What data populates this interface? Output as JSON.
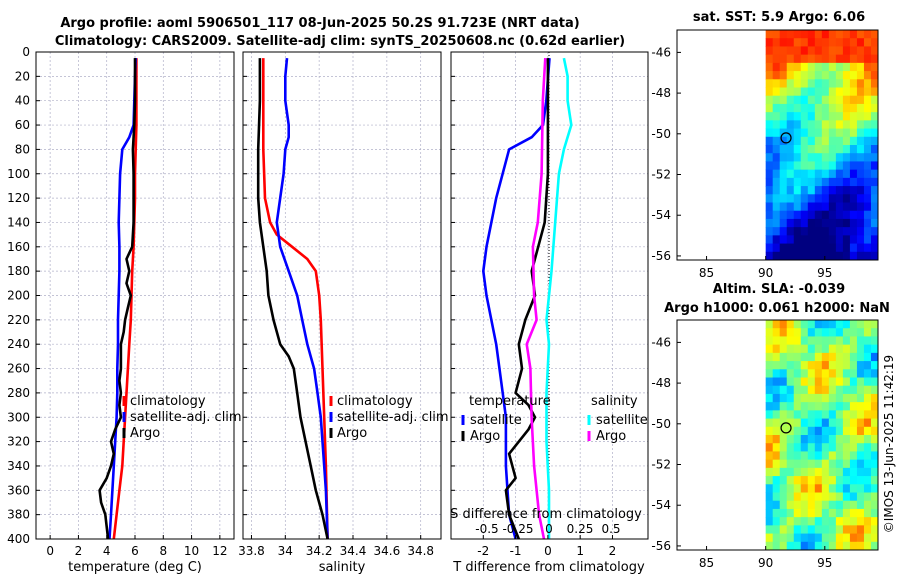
{
  "header": {
    "title_line1": "Argo profile: aoml 5906501_117 08-Jun-2025 50.2S 91.723E (NRT data)",
    "title_line2": "Climatology: CARS2009. Satellite-adj clim: synTS_20250608.nc (0.62d earlier)"
  },
  "copyright": "©IMOS 13-Jun-2025 11:42:19",
  "colors": {
    "climatology": "#ff0000",
    "satellite": "#0000ff",
    "argo": "#000000",
    "salinity_satellite": "#00ffff",
    "salinity_argo": "#ff00ff",
    "grid": "#b0b0c8",
    "map_marker": "#000000"
  },
  "chart_data": [
    {
      "type": "line",
      "id": "temperature",
      "xlabel": "temperature (deg C)",
      "ylabel": "",
      "xlim": [
        -1,
        13
      ],
      "ylim": [
        400,
        0
      ],
      "xticks": [
        0,
        2,
        4,
        6,
        8,
        10,
        12
      ],
      "yticks": [
        0,
        20,
        40,
        60,
        80,
        100,
        120,
        140,
        160,
        180,
        200,
        220,
        240,
        260,
        280,
        300,
        320,
        340,
        360,
        380,
        400
      ],
      "grid": true,
      "legend": {
        "placement": "right-middle",
        "entries": [
          "climatology",
          "satellite-adj. clim",
          "Argo"
        ]
      },
      "series": [
        {
          "name": "climatology",
          "color_key": "climatology",
          "points": [
            [
              6.1,
              5
            ],
            [
              6.1,
              20
            ],
            [
              6.1,
              40
            ],
            [
              6.1,
              60
            ],
            [
              6.05,
              80
            ],
            [
              6.0,
              100
            ],
            [
              6.0,
              120
            ],
            [
              5.95,
              140
            ],
            [
              5.9,
              160
            ],
            [
              5.8,
              180
            ],
            [
              5.75,
              200
            ],
            [
              5.7,
              220
            ],
            [
              5.6,
              240
            ],
            [
              5.5,
              260
            ],
            [
              5.4,
              280
            ],
            [
              5.3,
              300
            ],
            [
              5.2,
              320
            ],
            [
              5.1,
              340
            ],
            [
              4.9,
              360
            ],
            [
              4.7,
              380
            ],
            [
              4.5,
              400
            ]
          ]
        },
        {
          "name": "satellite-adj. clim",
          "color_key": "satellite",
          "points": [
            [
              6.05,
              5
            ],
            [
              6.0,
              20
            ],
            [
              5.95,
              40
            ],
            [
              5.9,
              60
            ],
            [
              5.6,
              70
            ],
            [
              5.1,
              80
            ],
            [
              4.95,
              100
            ],
            [
              4.9,
              120
            ],
            [
              4.85,
              140
            ],
            [
              4.9,
              160
            ],
            [
              4.9,
              180
            ],
            [
              4.85,
              200
            ],
            [
              4.8,
              220
            ],
            [
              4.8,
              240
            ],
            [
              4.75,
              260
            ],
            [
              4.75,
              280
            ],
            [
              4.7,
              300
            ],
            [
              4.6,
              320
            ],
            [
              4.5,
              340
            ],
            [
              4.4,
              360
            ],
            [
              4.3,
              380
            ],
            [
              4.2,
              400
            ]
          ]
        },
        {
          "name": "Argo",
          "color_key": "argo",
          "points": [
            [
              6.0,
              5
            ],
            [
              6.0,
              20
            ],
            [
              6.0,
              40
            ],
            [
              5.95,
              60
            ],
            [
              5.9,
              70
            ],
            [
              5.85,
              80
            ],
            [
              5.9,
              100
            ],
            [
              5.9,
              120
            ],
            [
              5.9,
              140
            ],
            [
              5.8,
              160
            ],
            [
              5.4,
              170
            ],
            [
              5.6,
              180
            ],
            [
              5.4,
              190
            ],
            [
              5.7,
              200
            ],
            [
              5.5,
              210
            ],
            [
              5.3,
              220
            ],
            [
              5.2,
              230
            ],
            [
              5.0,
              240
            ],
            [
              5.0,
              250
            ],
            [
              5.0,
              260
            ],
            [
              4.9,
              270
            ],
            [
              5.0,
              280
            ],
            [
              4.9,
              290
            ],
            [
              5.0,
              300
            ],
            [
              4.6,
              310
            ],
            [
              4.3,
              320
            ],
            [
              4.5,
              330
            ],
            [
              4.3,
              340
            ],
            [
              4.0,
              350
            ],
            [
              3.5,
              360
            ],
            [
              3.6,
              370
            ],
            [
              3.9,
              380
            ],
            [
              4.0,
              390
            ],
            [
              4.1,
              400
            ]
          ]
        }
      ]
    },
    {
      "type": "line",
      "id": "salinity",
      "xlabel": "salinity",
      "ylabel": "",
      "xlim": [
        33.75,
        34.92
      ],
      "ylim": [
        400,
        0
      ],
      "xticks": [
        33.8,
        34,
        34.2,
        34.4,
        34.6,
        34.8
      ],
      "xtick_labels": [
        "33.8",
        "34",
        "34.2",
        "34.4",
        "34.6",
        "34.8"
      ],
      "grid": true,
      "legend": {
        "placement": "right-middle",
        "entries": [
          "climatology",
          "satellite-adj. clim",
          "Argo"
        ]
      },
      "series": [
        {
          "name": "climatology",
          "color_key": "climatology",
          "points": [
            [
              33.87,
              5
            ],
            [
              33.87,
              40
            ],
            [
              33.87,
              80
            ],
            [
              33.88,
              120
            ],
            [
              33.91,
              140
            ],
            [
              33.95,
              150
            ],
            [
              34.04,
              160
            ],
            [
              34.13,
              170
            ],
            [
              34.18,
              180
            ],
            [
              34.2,
              200
            ],
            [
              34.21,
              220
            ],
            [
              34.22,
              260
            ],
            [
              34.23,
              300
            ],
            [
              34.24,
              340
            ],
            [
              34.25,
              400
            ]
          ]
        },
        {
          "name": "satellite-adj. clim",
          "color_key": "satellite",
          "points": [
            [
              34.01,
              5
            ],
            [
              34.0,
              20
            ],
            [
              34.0,
              40
            ],
            [
              34.02,
              60
            ],
            [
              34.02,
              70
            ],
            [
              34.0,
              80
            ],
            [
              33.99,
              100
            ],
            [
              33.97,
              120
            ],
            [
              33.95,
              140
            ],
            [
              33.97,
              160
            ],
            [
              34.02,
              180
            ],
            [
              34.07,
              200
            ],
            [
              34.1,
              220
            ],
            [
              34.13,
              240
            ],
            [
              34.17,
              260
            ],
            [
              34.19,
              280
            ],
            [
              34.21,
              300
            ],
            [
              34.22,
              320
            ],
            [
              34.23,
              340
            ],
            [
              34.24,
              360
            ],
            [
              34.25,
              400
            ]
          ]
        },
        {
          "name": "Argo",
          "color_key": "argo",
          "points": [
            [
              33.85,
              5
            ],
            [
              33.85,
              40
            ],
            [
              33.84,
              80
            ],
            [
              33.84,
              120
            ],
            [
              33.85,
              140
            ],
            [
              33.87,
              160
            ],
            [
              33.89,
              180
            ],
            [
              33.9,
              200
            ],
            [
              33.93,
              220
            ],
            [
              33.97,
              240
            ],
            [
              34.02,
              250
            ],
            [
              34.05,
              260
            ],
            [
              34.07,
              280
            ],
            [
              34.09,
              300
            ],
            [
              34.12,
              320
            ],
            [
              34.15,
              340
            ],
            [
              34.18,
              360
            ],
            [
              34.22,
              380
            ],
            [
              34.25,
              400
            ]
          ]
        }
      ]
    },
    {
      "type": "line",
      "id": "difference",
      "xlabel": "T difference from climatology",
      "secondary_xlabel": "S difference from climatology",
      "xlim": [
        -3,
        3.1
      ],
      "ylim": [
        400,
        0
      ],
      "xticks": [
        -2,
        -1,
        0,
        1,
        2
      ],
      "xtick_labels": [
        "-2",
        "-1",
        "0",
        "1",
        "2"
      ],
      "secondary_xticks": [
        -0.5,
        -0.25,
        0,
        0.25,
        0.5
      ],
      "secondary_xtick_labels": [
        "-0.5",
        "-0.25",
        "0",
        "0.25",
        "0.5"
      ],
      "grid": true,
      "legend": {
        "placement": "right-middle",
        "groups": [
          {
            "title": "temperature",
            "entries": [
              "satellite",
              "Argo"
            ]
          },
          {
            "title": "salinity",
            "entries": [
              "satellite",
              "Argo"
            ]
          }
        ]
      },
      "series": [
        {
          "name": "temperature satellite",
          "color_key": "satellite",
          "points": [
            [
              0.05,
              5
            ],
            [
              -0.05,
              40
            ],
            [
              -0.15,
              60
            ],
            [
              -0.5,
              70
            ],
            [
              -1.2,
              80
            ],
            [
              -1.6,
              120
            ],
            [
              -1.9,
              160
            ],
            [
              -2.0,
              180
            ],
            [
              -1.9,
              200
            ],
            [
              -1.6,
              240
            ],
            [
              -1.4,
              280
            ],
            [
              -1.3,
              300
            ],
            [
              -1.3,
              340
            ],
            [
              -1.2,
              380
            ],
            [
              -1.0,
              400
            ]
          ]
        },
        {
          "name": "temperature Argo",
          "color_key": "argo",
          "points": [
            [
              0.0,
              5
            ],
            [
              0.0,
              100
            ],
            [
              -0.1,
              140
            ],
            [
              -0.3,
              160
            ],
            [
              -0.5,
              180
            ],
            [
              -0.4,
              200
            ],
            [
              -0.7,
              220
            ],
            [
              -0.9,
              240
            ],
            [
              -0.8,
              260
            ],
            [
              -1.0,
              280
            ],
            [
              -0.6,
              290
            ],
            [
              -0.4,
              300
            ],
            [
              -0.6,
              310
            ],
            [
              -1.2,
              330
            ],
            [
              -1.0,
              350
            ],
            [
              -1.3,
              360
            ],
            [
              -1.2,
              380
            ],
            [
              -0.9,
              400
            ]
          ]
        },
        {
          "name": "salinity satellite",
          "color_key": "salinity_satellite",
          "points": [
            [
              0.12,
              5
            ],
            [
              0.15,
              20
            ],
            [
              0.15,
              40
            ],
            [
              0.18,
              60
            ],
            [
              0.12,
              80
            ],
            [
              0.08,
              100
            ],
            [
              0.05,
              140
            ],
            [
              0.02,
              180
            ],
            [
              -0.02,
              220
            ],
            [
              0.0,
              240
            ],
            [
              -0.02,
              280
            ],
            [
              -0.02,
              320
            ],
            [
              0.0,
              360
            ],
            [
              0.0,
              400
            ]
          ]
        },
        {
          "name": "salinity Argo",
          "color_key": "salinity_argo",
          "points": [
            [
              -0.03,
              5
            ],
            [
              -0.05,
              40
            ],
            [
              -0.06,
              100
            ],
            [
              -0.09,
              140
            ],
            [
              -0.13,
              160
            ],
            [
              -0.12,
              200
            ],
            [
              -0.1,
              220
            ],
            [
              -0.18,
              240
            ],
            [
              -0.15,
              260
            ],
            [
              -0.14,
              300
            ],
            [
              -0.12,
              340
            ],
            [
              -0.08,
              380
            ],
            [
              -0.04,
              400
            ]
          ]
        }
      ]
    },
    {
      "type": "heatmap",
      "id": "sst-map",
      "title": "sat. SST: 5.9 Argo: 6.06",
      "xlim": [
        82.5,
        99.5
      ],
      "ylim": [
        -56.2,
        -44.9
      ],
      "xticks": [
        85,
        90,
        95
      ],
      "yticks": [
        -46,
        -48,
        -50,
        -52,
        -54,
        -56
      ],
      "ytick_labels": [
        "-46",
        "-48",
        "-50",
        "-52",
        "-54",
        "-56"
      ],
      "data_extent_lon": [
        90,
        99.5
      ],
      "marker": {
        "lon": 91.723,
        "lat": -50.2
      },
      "colorscale": "jet"
    },
    {
      "type": "heatmap",
      "id": "sla-map",
      "title": "Altim. SLA: -0.039",
      "subtitle": "Argo h1000: 0.061 h2000: NaN",
      "xlim": [
        82.5,
        99.5
      ],
      "ylim": [
        -56.2,
        -44.9
      ],
      "xticks": [
        85,
        90,
        95
      ],
      "yticks": [
        -46,
        -48,
        -50,
        -52,
        -54,
        -56
      ],
      "ytick_labels": [
        "-46",
        "-48",
        "-50",
        "-52",
        "-54",
        "-56"
      ],
      "data_extent_lon": [
        90,
        99.5
      ],
      "marker": {
        "lon": 91.723,
        "lat": -50.2
      },
      "colorscale": "jet"
    }
  ]
}
